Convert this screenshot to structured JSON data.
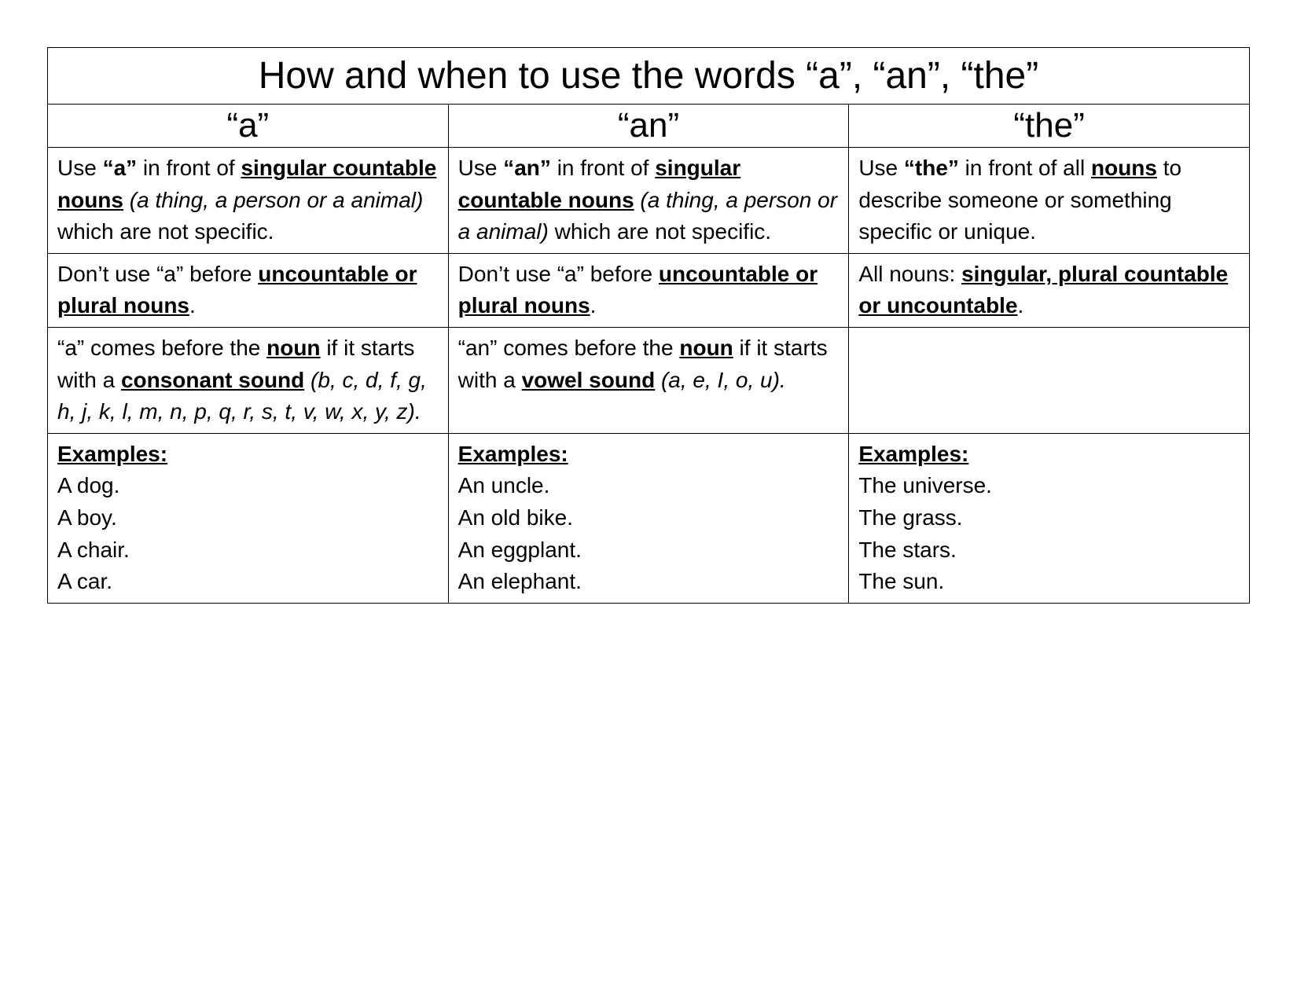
{
  "title": "How and when to use the words “a”, “an”, “the”",
  "headers": {
    "a": "“a”",
    "an": "“an”",
    "the": "“the”"
  },
  "a": {
    "rule1_pre": "Use ",
    "rule1_word": "“a”",
    "rule1_mid": " in front of ",
    "rule1_nouns": "singular countable nouns",
    "rule1_paren": " (a thing, a person or a animal)",
    "rule1_post": " which are not specific.",
    "rule2_pre": "Don’t use “a” before ",
    "rule2_nouns": "uncountable or plural nouns",
    "rule2_post": ".",
    "rule3_pre": "“a” comes before the ",
    "rule3_noun": "noun",
    "rule3_mid": " if it starts with a ",
    "rule3_sound": "consonant sound",
    "rule3_paren": " (b, c, d, f, g, h, j, k, l, m, n, p, q, r, s, t, v, w, x, y, z).",
    "ex_label": "Examples:",
    "ex1": "A dog.",
    "ex2": "A boy.",
    "ex3": "A chair.",
    "ex4": "A car."
  },
  "an": {
    "rule1_pre": "Use ",
    "rule1_word": "“an”",
    "rule1_mid": " in front of ",
    "rule1_nouns": "singular countable nouns",
    "rule1_paren": " (a thing, a person or a animal)",
    "rule1_post": " which are not specific.",
    "rule2_pre": "Don’t use “a” before ",
    "rule2_nouns": "uncountable or plural nouns",
    "rule2_post": ".",
    "rule3_pre": "“an” comes before the ",
    "rule3_noun": "noun",
    "rule3_mid": " if it starts with a ",
    "rule3_sound": "vowel sound",
    "rule3_paren": " (a, e, I, o, u).",
    "ex_label": "Examples:",
    "ex1": "An uncle.",
    "ex2": "An old bike.",
    "ex3": "An eggplant.",
    "ex4": "An elephant."
  },
  "the": {
    "rule1_pre": "Use ",
    "rule1_word": "“the”",
    "rule1_mid": " in front of all ",
    "rule1_nouns": "nouns",
    "rule1_post": " to describe someone or something specific or unique.",
    "rule2_pre": "All nouns: ",
    "rule2_nouns": "singular, plural countable or uncountable",
    "rule2_post": ".",
    "ex_label": "Examples:",
    "ex1": "The universe.",
    "ex2": "The grass.",
    "ex3": "The stars.",
    "ex4": "The sun."
  },
  "style": {
    "border_color": "#000000",
    "background_color": "#ffffff",
    "text_color": "#000000",
    "title_fontsize": 48,
    "header_fontsize": 44,
    "body_fontsize": 28,
    "font_family": "Comic Sans MS / handwriting-style",
    "columns": 3,
    "body_rows": 4
  }
}
